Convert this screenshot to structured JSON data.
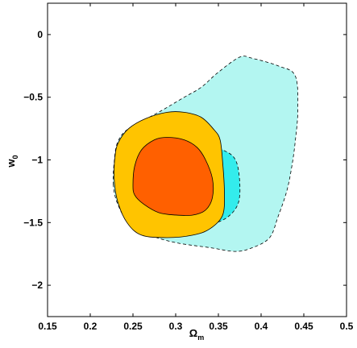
{
  "chart_data": {
    "type": "contour",
    "title": "",
    "xlabel": {
      "main": "Ω",
      "sub": "m"
    },
    "ylabel": {
      "main": "w",
      "sub": "0"
    },
    "xlim": [
      0.15,
      0.5
    ],
    "ylim": [
      -2.25,
      0.25
    ],
    "xticks": [
      0.15,
      0.2,
      0.25,
      0.3,
      0.35,
      0.4,
      0.45,
      0.5
    ],
    "xtick_labels": [
      "0.15",
      "0.2",
      "0.25",
      "0.3",
      "0.35",
      "0.4",
      "0.45",
      "0.5"
    ],
    "yticks": [
      0,
      -0.5,
      -1,
      -1.5,
      -2
    ],
    "ytick_labels": [
      "0",
      "−0.5",
      "−1",
      "−1.5",
      "−2"
    ],
    "grid": false,
    "legend": null,
    "regions": [
      {
        "id": "cyan-outer",
        "fill": "#b3f6f1",
        "stroke": "#000000",
        "dashed": true,
        "points": [
          [
            0.227,
            -1.2
          ],
          [
            0.228,
            -1.02
          ],
          [
            0.232,
            -0.86
          ],
          [
            0.245,
            -0.75
          ],
          [
            0.28,
            -0.62
          ],
          [
            0.31,
            -0.5
          ],
          [
            0.33,
            -0.42
          ],
          [
            0.35,
            -0.3
          ],
          [
            0.375,
            -0.18
          ],
          [
            0.39,
            -0.19
          ],
          [
            0.42,
            -0.25
          ],
          [
            0.44,
            -0.33
          ],
          [
            0.443,
            -0.6
          ],
          [
            0.44,
            -0.85
          ],
          [
            0.436,
            -1.05
          ],
          [
            0.43,
            -1.25
          ],
          [
            0.42,
            -1.45
          ],
          [
            0.41,
            -1.62
          ],
          [
            0.39,
            -1.7
          ],
          [
            0.37,
            -1.73
          ],
          [
            0.34,
            -1.7
          ],
          [
            0.3,
            -1.66
          ],
          [
            0.27,
            -1.6
          ],
          [
            0.245,
            -1.5
          ],
          [
            0.232,
            -1.35
          ]
        ]
      },
      {
        "id": "cyan-inner",
        "fill": "#33ecec",
        "stroke": "#000000",
        "dashed": true,
        "points": [
          [
            0.247,
            -1.15
          ],
          [
            0.25,
            -0.98
          ],
          [
            0.265,
            -0.9
          ],
          [
            0.3,
            -0.85
          ],
          [
            0.33,
            -0.87
          ],
          [
            0.355,
            -0.92
          ],
          [
            0.37,
            -1.0
          ],
          [
            0.375,
            -1.18
          ],
          [
            0.373,
            -1.35
          ],
          [
            0.36,
            -1.46
          ],
          [
            0.34,
            -1.51
          ],
          [
            0.31,
            -1.5
          ],
          [
            0.28,
            -1.45
          ],
          [
            0.26,
            -1.35
          ],
          [
            0.25,
            -1.25
          ]
        ]
      },
      {
        "id": "orange-outer",
        "fill": "#ffc400",
        "stroke": "#000000",
        "dashed": false,
        "points": [
          [
            0.228,
            -1.15
          ],
          [
            0.229,
            -0.97
          ],
          [
            0.233,
            -0.86
          ],
          [
            0.245,
            -0.75
          ],
          [
            0.265,
            -0.67
          ],
          [
            0.29,
            -0.62
          ],
          [
            0.31,
            -0.62
          ],
          [
            0.33,
            -0.66
          ],
          [
            0.345,
            -0.76
          ],
          [
            0.352,
            -0.84
          ],
          [
            0.355,
            -1.02
          ],
          [
            0.357,
            -1.25
          ],
          [
            0.355,
            -1.44
          ],
          [
            0.34,
            -1.55
          ],
          [
            0.32,
            -1.6
          ],
          [
            0.29,
            -1.62
          ],
          [
            0.26,
            -1.6
          ],
          [
            0.243,
            -1.5
          ],
          [
            0.232,
            -1.33
          ]
        ]
      },
      {
        "id": "orange-inner",
        "fill": "#ff6000",
        "stroke": "#000000",
        "dashed": false,
        "points": [
          [
            0.25,
            -1.2
          ],
          [
            0.252,
            -1.05
          ],
          [
            0.26,
            -0.92
          ],
          [
            0.275,
            -0.84
          ],
          [
            0.29,
            -0.82
          ],
          [
            0.31,
            -0.84
          ],
          [
            0.325,
            -0.9
          ],
          [
            0.335,
            -1.0
          ],
          [
            0.343,
            -1.15
          ],
          [
            0.343,
            -1.3
          ],
          [
            0.335,
            -1.4
          ],
          [
            0.32,
            -1.44
          ],
          [
            0.3,
            -1.44
          ],
          [
            0.28,
            -1.42
          ],
          [
            0.262,
            -1.35
          ],
          [
            0.252,
            -1.28
          ]
        ]
      }
    ]
  }
}
